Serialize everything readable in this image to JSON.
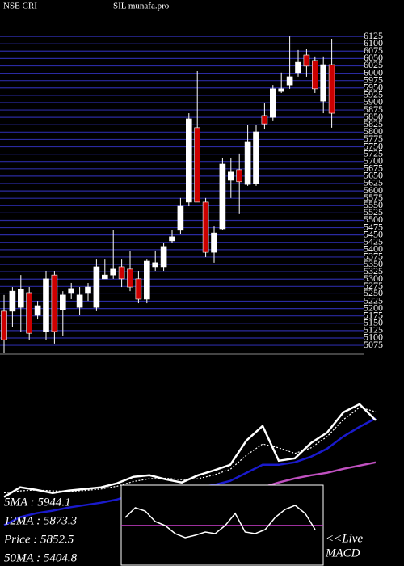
{
  "chart_data": [
    {
      "type": "candlestick",
      "title": "NSE CRI",
      "subtitle": "SIL munafa.pro",
      "up_color": "#ffffff",
      "down_color": "#cc0000",
      "grid": true,
      "grid_color": "#2a2aa0",
      "ylim": [
        5045,
        6150
      ],
      "yticks": [
        5075,
        5100,
        5125,
        5150,
        5175,
        5200,
        5225,
        5250,
        5275,
        5300,
        5325,
        5350,
        5375,
        5400,
        5425,
        5450,
        5475,
        5500,
        5525,
        5550,
        5575,
        5600,
        5625,
        5650,
        5675,
        5700,
        5725,
        5750,
        5775,
        5800,
        5825,
        5850,
        5875,
        5900,
        5925,
        5950,
        5975,
        6000,
        6025,
        6050,
        6075,
        6100,
        6125
      ],
      "open": [
        5191,
        5191,
        5204,
        5254,
        5177,
        5122,
        5314,
        5196,
        5254,
        5204,
        5254,
        5204,
        5301,
        5314,
        5342,
        5334,
        5301,
        5232,
        5342,
        5342,
        5430,
        5466,
        5562,
        5815,
        5562,
        5391,
        5471,
        5636,
        5672,
        5622,
        5625,
        5856,
        5850,
        5938,
        5960,
        6002,
        6062,
        6043,
        5905,
        6029
      ],
      "high": [
        5246,
        5273,
        5314,
        5273,
        5226,
        5328,
        5328,
        5259,
        5287,
        5273,
        5287,
        5369,
        5369,
        5466,
        5369,
        5397,
        5328,
        5369,
        5397,
        5424,
        5466,
        5576,
        5864,
        6007,
        5576,
        5479,
        5713,
        5713,
        5727,
        5823,
        5823,
        5897,
        5960,
        6002,
        6125,
        6079,
        6084,
        6057,
        6057,
        6117
      ],
      "low": [
        5048,
        5136,
        5122,
        5094,
        5163,
        5094,
        5081,
        5108,
        5232,
        5177,
        5226,
        5191,
        5301,
        5301,
        5273,
        5259,
        5218,
        5218,
        5328,
        5328,
        5424,
        5452,
        5548,
        5562,
        5375,
        5356,
        5466,
        5576,
        5521,
        5617,
        5617,
        5809,
        5837,
        5933,
        5947,
        5988,
        5988,
        5933,
        5864,
        5815
      ],
      "close": [
        5094,
        5259,
        5265,
        5116,
        5210,
        5301,
        5122,
        5246,
        5268,
        5246,
        5273,
        5342,
        5314,
        5334,
        5301,
        5273,
        5232,
        5361,
        5356,
        5411,
        5444,
        5548,
        5845,
        5562,
        5391,
        5457,
        5691,
        5664,
        5631,
        5768,
        5801,
        5828,
        5947,
        5947,
        5988,
        6037,
        6024,
        5947,
        6029,
        5864
      ]
    },
    {
      "type": "line",
      "ylim": [
        4300,
        6540
      ],
      "series": [
        {
          "name": "5MA : 5944.1",
          "color": "#ffffff",
          "dashed": true,
          "values": [
            5080,
            5100,
            5110,
            5100,
            5095,
            5105,
            5120,
            5150,
            5200,
            5230,
            5235,
            5220,
            5230,
            5270,
            5330,
            5480,
            5600,
            5560,
            5500,
            5560,
            5680,
            5860,
            5990,
            5944.1
          ]
        },
        {
          "name": "12MA : 5873.3",
          "color": "#1a1acc",
          "dashed": false,
          "values": [
            4734,
            4820,
            4863,
            4889,
            4923,
            4949,
            4975,
            5009,
            5061,
            5095,
            5104,
            5121,
            5138,
            5164,
            5207,
            5293,
            5379,
            5379,
            5405,
            5465,
            5551,
            5680,
            5783,
            5873.3
          ]
        },
        {
          "name": "Price : 5852.5",
          "color": "#ffffff",
          "dashed": false,
          "values": [
            5035,
            5138,
            5112,
            5078,
            5104,
            5121,
            5138,
            5181,
            5250,
            5267,
            5224,
            5190,
            5267,
            5319,
            5379,
            5637,
            5792,
            5422,
            5448,
            5611,
            5723,
            5938,
            6024,
            5852.5
          ]
        },
        {
          "name": "50MA : 5404.8",
          "color": "#c050c0",
          "dashed": false,
          "values": [
            null,
            null,
            null,
            null,
            null,
            null,
            null,
            null,
            4734,
            4777,
            4820,
            4863,
            4923,
            4975,
            5035,
            5078,
            5138,
            5190,
            5233,
            5267,
            5293,
            5336,
            5370,
            5404.8
          ]
        }
      ]
    },
    {
      "type": "macd",
      "title": "MACD",
      "annotation": "<<Live",
      "ylim": [
        -1,
        1
      ],
      "zero_line": 0,
      "zero_color": "#d040d0",
      "color": "#ffffff",
      "values": [
        0.2,
        0.44,
        0.36,
        0.1,
        0,
        -0.2,
        -0.3,
        -0.24,
        -0.16,
        -0.2,
        0,
        0.3,
        -0.16,
        -0.2,
        -0.1,
        0.2,
        0.4,
        0.5,
        0.3,
        -0.1
      ]
    }
  ]
}
